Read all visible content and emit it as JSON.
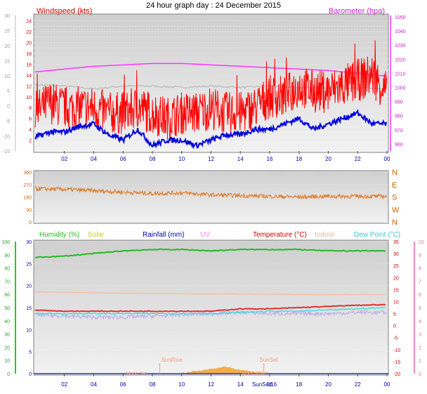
{
  "title": "24 hour graph day : 24 December 2015",
  "colors": {
    "wind": "#ff0000",
    "wind_avg": "#0000dd",
    "baro": "#ff33ff",
    "baro_prev": "#c0c0c0",
    "dir": "#e07820",
    "humidity": "#22bb22",
    "temp": "#dd3333",
    "indoor": "#f5c0a8",
    "dew": "#44dddd",
    "uv": "#bbaaee",
    "solar": "#f0a020",
    "rain": "#2222bb"
  },
  "chart_data": [
    {
      "type": "line",
      "panel": "wind-baro",
      "left_label": "Windspeed (kts)",
      "right_label": "Barometer (hpa)",
      "x_ticks": [
        "02",
        "04",
        "06",
        "08",
        "10",
        "12",
        "14",
        "16",
        "18",
        "20",
        "22",
        "00"
      ],
      "left_ticks": [
        "2",
        "4",
        "6",
        "8",
        "10",
        "12",
        "14",
        "16",
        "18",
        "20",
        "22",
        "24"
      ],
      "outer_left_ticks": [
        "-15",
        "-10",
        "-5",
        "0",
        "5",
        "10",
        "15",
        "20",
        "25",
        "30"
      ],
      "right_ticks": [
        "960",
        "970",
        "980",
        "990",
        "1000",
        "1010",
        "1020",
        "1030",
        "1040",
        "1050"
      ],
      "ylim_wind": [
        0,
        25
      ],
      "ylim_baro": [
        955,
        1051
      ],
      "series": [
        {
          "key": "gust",
          "x": [
            0,
            1,
            2,
            3,
            4,
            5,
            6,
            7,
            8,
            9,
            10,
            11,
            12,
            13,
            14,
            15,
            16,
            17,
            18,
            19,
            20,
            21,
            22,
            23,
            24
          ],
          "values": [
            7,
            9,
            8,
            8,
            8,
            7,
            7,
            8,
            7,
            6,
            7,
            7,
            8,
            7,
            7,
            8,
            10,
            10,
            12,
            11,
            11,
            12,
            13,
            14,
            11
          ]
        },
        {
          "key": "avg",
          "x": [
            0,
            1,
            2,
            3,
            4,
            5,
            6,
            7,
            8,
            9,
            10,
            11,
            12,
            13,
            14,
            15,
            16,
            17,
            18,
            19,
            20,
            21,
            22,
            23,
            24
          ],
          "values": [
            2.5,
            3.5,
            3.5,
            4.5,
            5,
            3,
            2,
            4,
            1,
            2,
            2,
            1,
            2,
            3,
            3,
            4,
            4,
            5,
            6,
            4,
            5,
            6,
            7,
            5,
            5
          ]
        },
        {
          "key": "baro",
          "x": [
            0,
            2,
            4,
            6,
            8,
            10,
            12,
            14,
            16,
            18,
            20,
            22,
            24
          ],
          "values": [
            1011,
            1013,
            1015,
            1016,
            1017,
            1017,
            1016,
            1015,
            1014,
            1013,
            1012,
            1010,
            1008
          ]
        },
        {
          "key": "baro_prev",
          "x": [
            0,
            2,
            4,
            6,
            8,
            10,
            12,
            14,
            16,
            18,
            20,
            22,
            24
          ],
          "values": [
            1002,
            1001,
            999,
            1001,
            1001,
            1000,
            1001,
            1000,
            1001,
            1000,
            1000,
            1000,
            999
          ]
        }
      ]
    },
    {
      "type": "line",
      "panel": "direction",
      "left_ticks": [
        "0",
        "90",
        "180",
        "270",
        "360"
      ],
      "right_ticks": [
        "N",
        "W",
        "S",
        "E",
        "N"
      ],
      "ylim": [
        0,
        360
      ],
      "series": [
        {
          "key": "dir",
          "x": [
            0,
            2,
            4,
            6,
            8,
            10,
            12,
            14,
            16,
            18,
            20,
            22,
            24
          ],
          "values": [
            240,
            235,
            225,
            215,
            205,
            210,
            195,
            190,
            185,
            180,
            185,
            185,
            185
          ]
        }
      ]
    },
    {
      "type": "line",
      "panel": "temp-hum",
      "legend": [
        "Humidity (%)",
        "Solar",
        "Rainfall (mm)",
        "UV",
        "Temperature (°C)",
        "Indoor",
        "Dew Point (°C)"
      ],
      "left_hum_ticks": [
        "0",
        "10",
        "20",
        "30",
        "40",
        "50",
        "60",
        "70",
        "80",
        "90",
        "100"
      ],
      "left_rain_ticks": [
        "0",
        "5",
        "10",
        "15",
        "20",
        "25",
        "30"
      ],
      "right_temp_ticks": [
        "-20",
        "-15",
        "-10",
        "-5",
        "0",
        "5",
        "10",
        "15",
        "20",
        "25",
        "30",
        "35"
      ],
      "right_uv_ticks": [
        "0",
        "1",
        "2",
        "3",
        "4",
        "5",
        "6",
        "7",
        "8",
        "9",
        "10"
      ],
      "x_ticks": [
        "02",
        "04",
        "06",
        "08",
        "10",
        "12",
        "14",
        "16",
        "18",
        "20",
        "22",
        "00"
      ],
      "ylim_temp": [
        -20,
        35
      ],
      "annotations": {
        "sunrise": "SunRise",
        "sunset": "SunSet",
        "sunset2": "SunSet",
        "moonset": "Moon Set",
        "moonrise": "Moon Rise",
        "sunset_axis": "SunSet16"
      },
      "series": [
        {
          "key": "humidity",
          "x": [
            0,
            2,
            4,
            6,
            8,
            10,
            12,
            14,
            16,
            18,
            20,
            22,
            24
          ],
          "values": [
            88,
            89,
            91,
            93,
            94,
            94,
            93,
            94,
            94,
            94,
            93,
            93,
            93
          ]
        },
        {
          "key": "temp",
          "x": [
            0,
            2,
            4,
            6,
            8,
            10,
            12,
            14,
            16,
            18,
            20,
            22,
            24
          ],
          "values": [
            6.5,
            6,
            6,
            6,
            6,
            6,
            6,
            7,
            7,
            7.5,
            8,
            8.5,
            8.7
          ]
        },
        {
          "key": "indoor",
          "x": [
            0,
            2,
            4,
            6,
            8,
            10,
            12,
            14,
            16,
            18,
            20,
            22,
            24
          ],
          "values": [
            14,
            14,
            13.7,
            13.5,
            13.4,
            13.3,
            13.2,
            13.2,
            13.1,
            13,
            13,
            13,
            13
          ]
        },
        {
          "key": "dew",
          "x": [
            0,
            2,
            4,
            6,
            8,
            10,
            12,
            14,
            16,
            18,
            20,
            22,
            24
          ],
          "values": [
            5,
            5,
            5,
            5,
            5,
            5,
            5,
            5.5,
            6,
            6,
            6.5,
            7,
            7.5
          ]
        },
        {
          "key": "uv_temp",
          "x": [
            0,
            2,
            4,
            6,
            8,
            10,
            12,
            14,
            16,
            18,
            20,
            22,
            24
          ],
          "values": [
            4.5,
            4,
            3.5,
            3.5,
            4,
            4.5,
            5,
            5.5,
            5,
            5,
            5,
            5.5,
            5.5
          ]
        },
        {
          "key": "solar",
          "x": [
            10,
            11,
            12,
            13,
            14,
            15,
            16
          ],
          "values": [
            0,
            1,
            2,
            3,
            1.5,
            0.5,
            0
          ]
        }
      ]
    }
  ]
}
